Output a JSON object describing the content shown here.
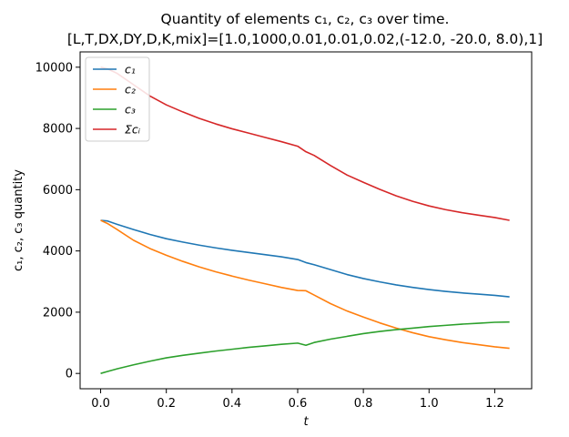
{
  "chart_data": {
    "type": "line",
    "title_line1": "Quantity of elements c₁, c₂, c₃ over time.",
    "title_line2": "[L,T,DX,DY,D,K,mix]=[1.0,1000,0.01,0.01,0.02,(-12.0, -20.0, 8.0),1]",
    "xlabel": "t",
    "ylabel": "c₁, c₂, c₃ quantity",
    "xlim": [
      -0.0625,
      1.3125
    ],
    "ylim": [
      -500,
      10500
    ],
    "xticks": [
      0.0,
      0.2,
      0.4,
      0.6,
      0.8,
      1.0,
      1.2
    ],
    "xtick_labels": [
      "0.0",
      "0.2",
      "0.4",
      "0.6",
      "0.8",
      "1.0",
      "1.2"
    ],
    "yticks": [
      0,
      2000,
      4000,
      6000,
      8000,
      10000
    ],
    "ytick_labels": [
      "0",
      "2000",
      "4000",
      "6000",
      "8000",
      "10000"
    ],
    "grid": false,
    "legend_position": "upper-left",
    "x": [
      0.0,
      0.02,
      0.05,
      0.1,
      0.15,
      0.2,
      0.25,
      0.3,
      0.35,
      0.4,
      0.45,
      0.5,
      0.55,
      0.6,
      0.625,
      0.65,
      0.7,
      0.75,
      0.8,
      0.85,
      0.9,
      0.95,
      1.0,
      1.05,
      1.1,
      1.15,
      1.2,
      1.245
    ],
    "series": [
      {
        "name": "c₁",
        "color": "#1f77b4",
        "values": [
          5000,
          4980,
          4870,
          4700,
          4540,
          4400,
          4290,
          4190,
          4100,
          4020,
          3950,
          3880,
          3810,
          3720,
          3620,
          3550,
          3390,
          3230,
          3100,
          2990,
          2890,
          2810,
          2740,
          2680,
          2630,
          2590,
          2550,
          2500
        ]
      },
      {
        "name": "c₂",
        "color": "#ff7f0e",
        "values": [
          5000,
          4900,
          4700,
          4350,
          4080,
          3860,
          3660,
          3480,
          3320,
          3180,
          3050,
          2930,
          2810,
          2710,
          2700,
          2560,
          2280,
          2040,
          1840,
          1650,
          1480,
          1330,
          1200,
          1100,
          1010,
          940,
          870,
          820
        ]
      },
      {
        "name": "c₃",
        "color": "#2ca02c",
        "values": [
          0,
          60,
          150,
          280,
          400,
          510,
          590,
          660,
          730,
          790,
          850,
          900,
          950,
          990,
          920,
          1010,
          1120,
          1210,
          1300,
          1370,
          1430,
          1480,
          1530,
          1570,
          1610,
          1640,
          1670,
          1680
        ]
      },
      {
        "name": "Σcᵢ",
        "color": "#d62728",
        "values": [
          10000,
          9950,
          9800,
          9430,
          9060,
          8770,
          8540,
          8330,
          8150,
          7990,
          7850,
          7710,
          7570,
          7420,
          7240,
          7120,
          6790,
          6480,
          6240,
          6010,
          5800,
          5620,
          5470,
          5350,
          5250,
          5170,
          5090,
          5000
        ]
      }
    ]
  }
}
